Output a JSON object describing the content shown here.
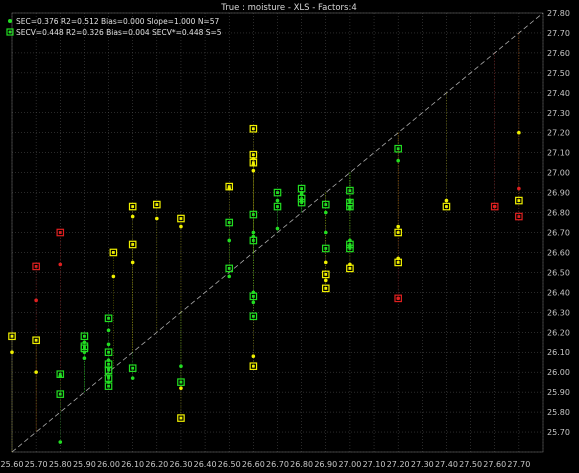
{
  "chart_data": {
    "type": "scatter",
    "title": "True : moisture - XLS - Factors:4",
    "xlim": [
      25.6,
      27.8
    ],
    "ylim": [
      25.6,
      27.8
    ],
    "x_ticks": [
      "25.60",
      "25.70",
      "25.80",
      "25.90",
      "26.00",
      "26.10",
      "26.20",
      "26.30",
      "26.40",
      "26.50",
      "26.60",
      "26.70",
      "26.80",
      "26.90",
      "27.00",
      "27.10",
      "27.20",
      "27.30",
      "27.40",
      "27.50",
      "27.60",
      "27.70"
    ],
    "y_ticks": [
      "25.70",
      "25.80",
      "25.90",
      "26.00",
      "26.10",
      "26.20",
      "26.30",
      "26.40",
      "26.50",
      "26.60",
      "26.70",
      "26.80",
      "26.90",
      "27.00",
      "27.10",
      "27.20",
      "27.30",
      "27.40",
      "27.50",
      "27.60",
      "27.70",
      "27.80"
    ],
    "grid": true,
    "diagonal": true,
    "legend": {
      "placement": "top-left",
      "entries": [
        "SEC=0.376 R2=0.512 Bias=0.000 Slope=1.000 N=57",
        "SECV=0.448 R2=0.326 Bias=0.004 SECV*=0.448 S=5"
      ]
    },
    "colors": {
      "green": "#22dd22",
      "yellow": "#f0f000",
      "red": "#e02020",
      "grid": "#555555",
      "diagonal": "#aaaaaa",
      "background": "#000000"
    },
    "points": [
      {
        "x": 25.6,
        "cal": 26.1,
        "val": 26.18,
        "c": "yellow"
      },
      {
        "x": 25.7,
        "cal": 26.36,
        "val": 26.53,
        "c": "red"
      },
      {
        "x": 25.7,
        "cal": 26.0,
        "val": 26.16,
        "c": "yellow"
      },
      {
        "x": 25.8,
        "cal": 26.54,
        "val": 26.7,
        "c": "red"
      },
      {
        "x": 25.8,
        "cal": 25.98,
        "val": 25.99,
        "c": "green"
      },
      {
        "x": 25.8,
        "cal": 25.65,
        "val": 25.89,
        "c": "green"
      },
      {
        "x": 25.9,
        "cal": 26.15,
        "val": 26.18,
        "c": "green"
      },
      {
        "x": 25.9,
        "cal": 26.1,
        "val": 26.13,
        "c": "green"
      },
      {
        "x": 25.9,
        "cal": 26.07,
        "val": 26.12,
        "c": "green"
      },
      {
        "x": 26.0,
        "cal": 26.21,
        "val": 26.27,
        "c": "green"
      },
      {
        "x": 26.0,
        "cal": 26.14,
        "val": 26.1,
        "c": "green"
      },
      {
        "x": 26.0,
        "cal": 26.06,
        "val": 26.04,
        "c": "green"
      },
      {
        "x": 26.0,
        "cal": 26.02,
        "val": 26.01,
        "c": "green"
      },
      {
        "x": 26.0,
        "cal": 25.98,
        "val": 25.97,
        "c": "green"
      },
      {
        "x": 26.0,
        "cal": 25.95,
        "val": 25.93,
        "c": "green"
      },
      {
        "x": 26.02,
        "cal": 26.48,
        "val": 26.6,
        "c": "yellow"
      },
      {
        "x": 26.1,
        "cal": 26.78,
        "val": 26.83,
        "c": "yellow"
      },
      {
        "x": 26.1,
        "cal": 26.55,
        "val": 26.64,
        "c": "yellow"
      },
      {
        "x": 26.1,
        "cal": 25.97,
        "val": 26.02,
        "c": "green"
      },
      {
        "x": 26.2,
        "cal": 26.77,
        "val": 26.84,
        "c": "yellow"
      },
      {
        "x": 26.3,
        "cal": 26.73,
        "val": 26.77,
        "c": "yellow"
      },
      {
        "x": 26.3,
        "cal": 26.03,
        "val": 25.95,
        "c": "green"
      },
      {
        "x": 26.3,
        "cal": 25.92,
        "val": 25.77,
        "c": "yellow"
      },
      {
        "x": 26.5,
        "cal": 26.92,
        "val": 26.93,
        "c": "yellow"
      },
      {
        "x": 26.5,
        "cal": 26.66,
        "val": 26.75,
        "c": "green"
      },
      {
        "x": 26.5,
        "cal": 26.48,
        "val": 26.52,
        "c": "green"
      },
      {
        "x": 26.6,
        "cal": 27.01,
        "val": 27.22,
        "c": "yellow"
      },
      {
        "x": 26.6,
        "cal": 27.07,
        "val": 27.09,
        "c": "yellow"
      },
      {
        "x": 26.6,
        "cal": 27.04,
        "val": 27.05,
        "c": "yellow"
      },
      {
        "x": 26.6,
        "cal": 26.7,
        "val": 26.79,
        "c": "green"
      },
      {
        "x": 26.6,
        "cal": 26.68,
        "val": 26.66,
        "c": "green"
      },
      {
        "x": 26.6,
        "cal": 26.4,
        "val": 26.38,
        "c": "green"
      },
      {
        "x": 26.6,
        "cal": 26.35,
        "val": 26.28,
        "c": "green"
      },
      {
        "x": 26.6,
        "cal": 26.08,
        "val": 26.03,
        "c": "yellow"
      },
      {
        "x": 26.7,
        "cal": 26.86,
        "val": 26.9,
        "c": "green"
      },
      {
        "x": 26.7,
        "cal": 26.72,
        "val": 26.83,
        "c": "green"
      },
      {
        "x": 26.8,
        "cal": 26.9,
        "val": 26.92,
        "c": "green"
      },
      {
        "x": 26.8,
        "cal": 26.89,
        "val": 26.87,
        "c": "green"
      },
      {
        "x": 26.8,
        "cal": 26.86,
        "val": 26.85,
        "c": "green"
      },
      {
        "x": 26.9,
        "cal": 26.8,
        "val": 26.84,
        "c": "green"
      },
      {
        "x": 26.9,
        "cal": 26.7,
        "val": 26.62,
        "c": "green"
      },
      {
        "x": 26.9,
        "cal": 26.55,
        "val": 26.49,
        "c": "yellow"
      },
      {
        "x": 26.9,
        "cal": 26.46,
        "val": 26.42,
        "c": "yellow"
      },
      {
        "x": 27.0,
        "cal": 26.86,
        "val": 26.91,
        "c": "green"
      },
      {
        "x": 27.0,
        "cal": 26.83,
        "val": 26.85,
        "c": "green"
      },
      {
        "x": 27.0,
        "cal": 26.82,
        "val": 26.83,
        "c": "green"
      },
      {
        "x": 27.0,
        "cal": 26.66,
        "val": 26.64,
        "c": "green"
      },
      {
        "x": 27.0,
        "cal": 26.63,
        "val": 26.62,
        "c": "green"
      },
      {
        "x": 27.0,
        "cal": 26.54,
        "val": 26.52,
        "c": "yellow"
      },
      {
        "x": 27.2,
        "cal": 27.06,
        "val": 27.12,
        "c": "green"
      },
      {
        "x": 27.2,
        "cal": 26.73,
        "val": 26.7,
        "c": "yellow"
      },
      {
        "x": 27.2,
        "cal": 26.57,
        "val": 26.55,
        "c": "yellow"
      },
      {
        "x": 27.2,
        "cal": 26.37,
        "val": 26.37,
        "c": "red"
      },
      {
        "x": 27.4,
        "cal": 26.86,
        "val": 26.83,
        "c": "yellow"
      },
      {
        "x": 27.6,
        "cal": 26.83,
        "val": 26.83,
        "c": "red"
      },
      {
        "x": 27.7,
        "cal": 27.2,
        "val": 26.86,
        "c": "yellow"
      },
      {
        "x": 27.7,
        "cal": 26.92,
        "val": 26.78,
        "c": "red"
      }
    ]
  }
}
